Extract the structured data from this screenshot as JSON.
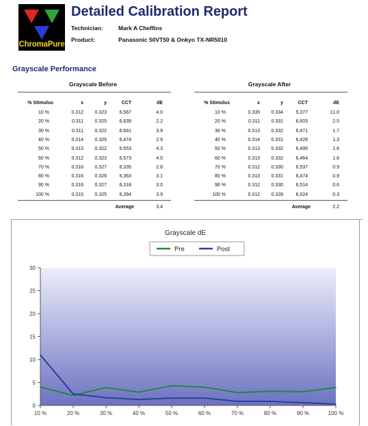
{
  "header": {
    "logo_text": "ChromaPure",
    "title": "Detailed Calibration Report",
    "technician_label": "Technician:",
    "technician": "Mark A Cheffins",
    "product_label": "Product:",
    "product": "Panasonic 50VT50 & Onkyo TX-NR5010"
  },
  "section_title": "Grayscale Performance",
  "tables": {
    "before": {
      "title": "Grayscale Before",
      "columns": [
        "% Stimulus",
        "x",
        "y",
        "CCT",
        "dE"
      ],
      "rows": [
        [
          "10 %",
          "0.312",
          "0.323",
          "6,567",
          "4.0"
        ],
        [
          "20 %",
          "0.311",
          "0.325",
          "6,639",
          "2.2"
        ],
        [
          "30 %",
          "0.311",
          "0.322",
          "6,661",
          "3.9"
        ],
        [
          "40 %",
          "0.314",
          "0.325",
          "6,474",
          "2.9"
        ],
        [
          "50 %",
          "0.313",
          "0.322",
          "6,553",
          "4.3"
        ],
        [
          "60 %",
          "0.312",
          "0.323",
          "6,573",
          "4.0"
        ],
        [
          "70 %",
          "0.316",
          "0.327",
          "6,335",
          "2.8"
        ],
        [
          "80 %",
          "0.316",
          "0.326",
          "6,363",
          "3.1"
        ],
        [
          "90 %",
          "0.316",
          "0.327",
          "6,318",
          "3.0"
        ],
        [
          "100 %",
          "0.315",
          "0.325",
          "6,394",
          "3.9"
        ]
      ],
      "average_label": "Average",
      "average": "3.4"
    },
    "after": {
      "title": "Grayscale After",
      "columns": [
        "% Stimulus",
        "x",
        "y",
        "CCT",
        "dE"
      ],
      "rows": [
        [
          "10 %",
          "0.335",
          "0.334",
          "5,377",
          "11.0"
        ],
        [
          "20 %",
          "0.311",
          "0.331",
          "6,603",
          "2.5"
        ],
        [
          "30 %",
          "0.313",
          "0.332",
          "6,471",
          "1.7"
        ],
        [
          "40 %",
          "0.314",
          "0.331",
          "6,426",
          "1.3"
        ],
        [
          "50 %",
          "0.313",
          "0.332",
          "6,495",
          "1.6"
        ],
        [
          "60 %",
          "0.313",
          "0.332",
          "6,464",
          "1.6"
        ],
        [
          "70 %",
          "0.312",
          "0.330",
          "6,537",
          "0.9"
        ],
        [
          "80 %",
          "0.313",
          "0.331",
          "6,474",
          "0.9"
        ],
        [
          "90 %",
          "0.312",
          "0.330",
          "6,514",
          "0.6"
        ],
        [
          "100 %",
          "0.312",
          "0.328",
          "6,524",
          "0.3"
        ]
      ],
      "average_label": "Average",
      "average": "2.2"
    }
  },
  "chart_data": {
    "type": "line",
    "title": "Grayscale dE",
    "categories": [
      "10 %",
      "20 %",
      "30 %",
      "40 %",
      "50 %",
      "60 %",
      "70 %",
      "80 %",
      "90 %",
      "100 %"
    ],
    "series": [
      {
        "name": "Pre",
        "color": "#1e8a3c",
        "values": [
          4.0,
          2.2,
          3.9,
          2.9,
          4.3,
          4.0,
          2.8,
          3.1,
          3.0,
          3.9
        ]
      },
      {
        "name": "Post",
        "color": "#2b3f9e",
        "values": [
          11.0,
          2.5,
          1.7,
          1.3,
          1.6,
          1.6,
          0.9,
          0.9,
          0.6,
          0.3
        ]
      }
    ],
    "ylim": [
      0,
      30
    ],
    "yticks": [
      0,
      5,
      10,
      15,
      20,
      25,
      30
    ],
    "grid": false,
    "legend": "top",
    "plot_fill": [
      "#eceefa",
      "#6d72c2"
    ]
  }
}
